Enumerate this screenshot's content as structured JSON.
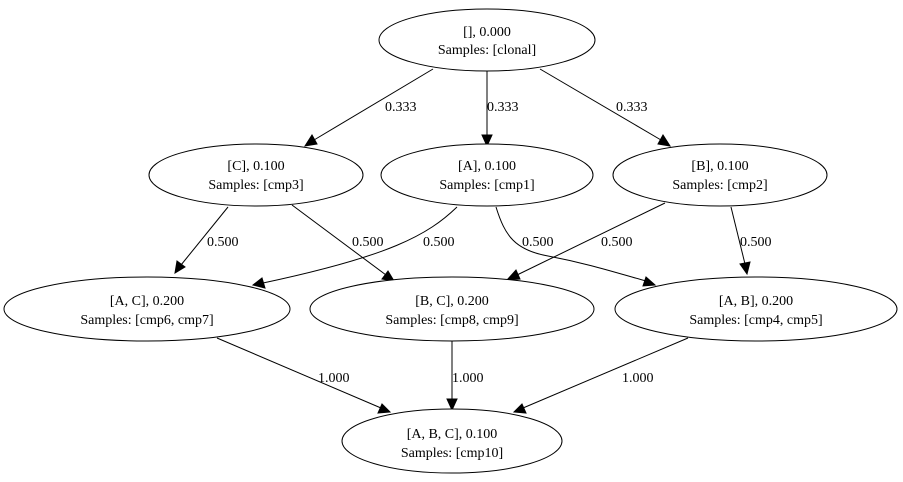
{
  "nodes": {
    "root": {
      "title": "[], 0.000",
      "samples": "Samples: [clonal]"
    },
    "c": {
      "title": "[C], 0.100",
      "samples": "Samples: [cmp3]"
    },
    "a": {
      "title": "[A], 0.100",
      "samples": "Samples: [cmp1]"
    },
    "b": {
      "title": "[B], 0.100",
      "samples": "Samples: [cmp2]"
    },
    "ac": {
      "title": "[A, C], 0.200",
      "samples": "Samples: [cmp6, cmp7]"
    },
    "bc": {
      "title": "[B, C], 0.200",
      "samples": "Samples: [cmp8, cmp9]"
    },
    "ab": {
      "title": "[A, B], 0.200",
      "samples": "Samples: [cmp4, cmp5]"
    },
    "abc": {
      "title": "[A, B, C], 0.100",
      "samples": "Samples: [cmp10]"
    }
  },
  "edges": {
    "root_c": "0.333",
    "root_a": "0.333",
    "root_b": "0.333",
    "c_ac": "0.500",
    "c_bc": "0.500",
    "a_ac": "0.500",
    "a_ab": "0.500",
    "b_bc": "0.500",
    "b_ab": "0.500",
    "ac_abc": "1.000",
    "bc_abc": "1.000",
    "ab_abc": "1.000"
  }
}
